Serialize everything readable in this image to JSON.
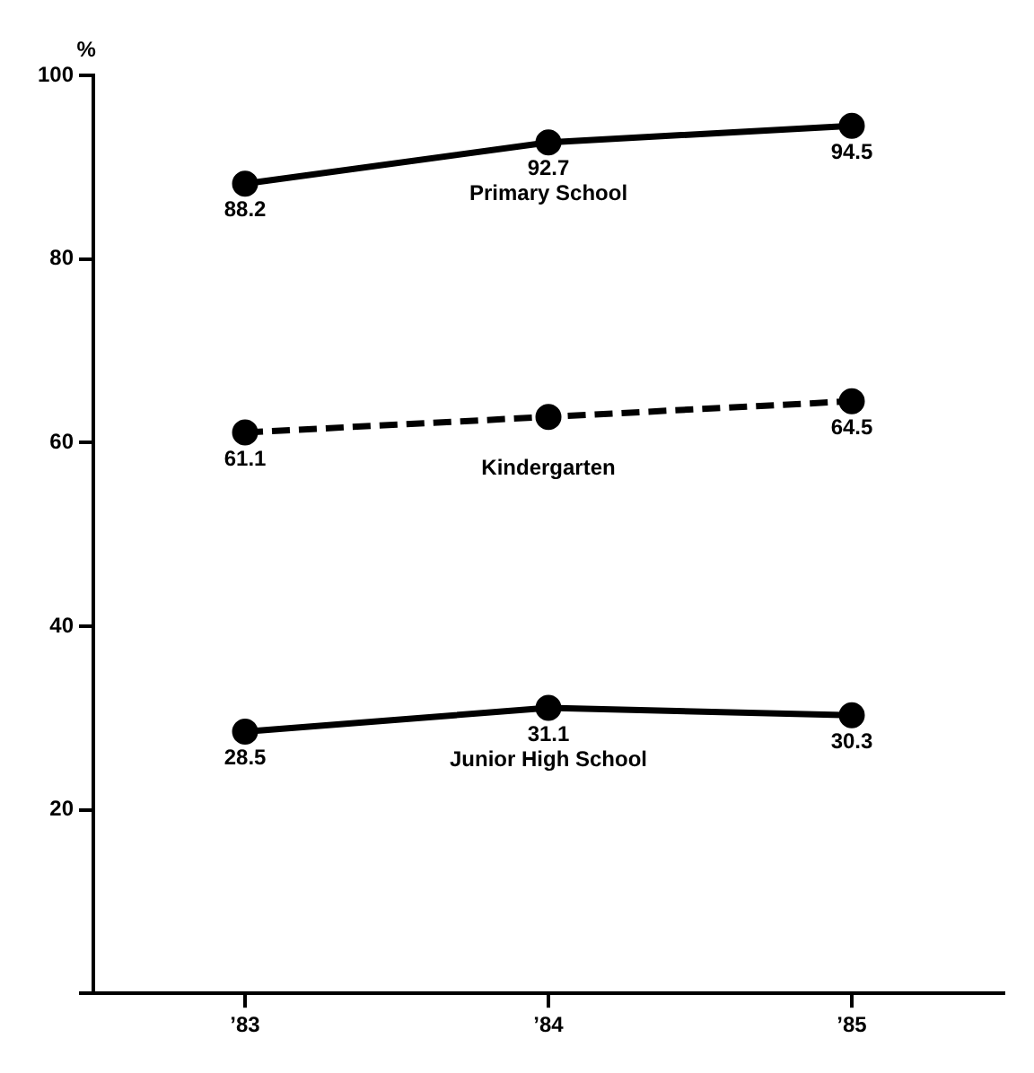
{
  "chart_data": {
    "type": "line",
    "ylabel": "%",
    "categories": [
      "’83",
      "’84",
      "’85"
    ],
    "ylim": [
      0,
      100
    ],
    "yticks": [
      {
        "value": 0,
        "label": null
      },
      20,
      40,
      60,
      80,
      100
    ],
    "grid": false,
    "legend": false,
    "marker": "circle",
    "series": [
      {
        "name": "Primary School",
        "color": "#000000",
        "values": [
          88.2,
          92.7,
          94.5
        ],
        "value_labels": [
          "88.2",
          "92.7",
          "94.5"
        ],
        "line_style": "solid"
      },
      {
        "name": "Kindergarten",
        "color": "#000000",
        "values": [
          61.1,
          62.8,
          64.5
        ],
        "value_labels": [
          "61.1",
          null,
          "64.5"
        ],
        "line_style": "dashed"
      },
      {
        "name": "Junior High School",
        "color": "#000000",
        "values": [
          28.5,
          31.1,
          30.3
        ],
        "value_labels": [
          "28.5",
          "31.1",
          "30.3"
        ],
        "line_style": "solid"
      }
    ]
  }
}
